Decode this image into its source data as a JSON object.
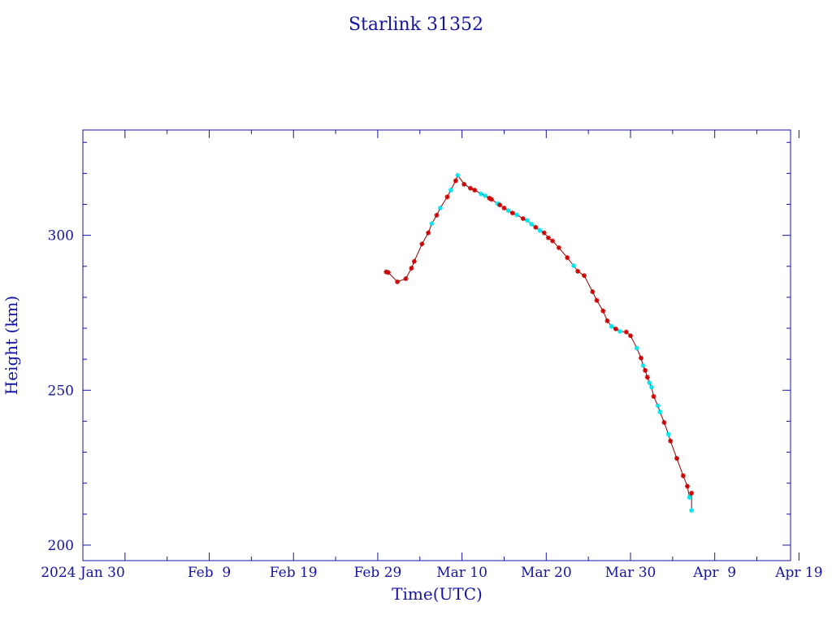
{
  "chart_data": {
    "type": "line",
    "title": "Starlink 31352",
    "xlabel": "Time(UTC)",
    "ylabel": "Height (km)",
    "x_ticks": [
      "2024 Jan 30",
      "Feb  9",
      "Feb 19",
      "Feb 29",
      "Mar 10",
      "Mar 20",
      "Mar 30",
      "Apr  9",
      "Apr 19"
    ],
    "y_ticks": [
      "200",
      "250",
      "300"
    ],
    "ylim": [
      195,
      334
    ],
    "xlim": [
      "2024-01-25",
      "2024-04-18"
    ],
    "grid": false,
    "colors": {
      "axis": "#1414a0",
      "line": "#8b0000",
      "marker_a": "#cc0000",
      "marker_b": "#00e5ee"
    },
    "series": [
      {
        "points": [
          [
            "2024-03-01T00:00",
            288.2,
            "a"
          ],
          [
            "2024-03-01T06:00",
            288.0,
            "a"
          ],
          [
            "2024-03-02T08:00",
            285.0,
            "a"
          ],
          [
            "2024-03-03T08:00",
            286.0,
            "a"
          ],
          [
            "2024-03-04T00:00",
            289.4,
            "a"
          ],
          [
            "2024-03-04T08:00",
            291.6,
            "a"
          ],
          [
            "2024-03-05T06:00",
            297.2,
            "a"
          ],
          [
            "2024-03-06T00:00",
            300.8,
            "a"
          ],
          [
            "2024-03-06T10:00",
            303.8,
            "b"
          ],
          [
            "2024-03-07T00:00",
            306.5,
            "a"
          ],
          [
            "2024-03-07T10:00",
            308.8,
            "b"
          ],
          [
            "2024-03-08T06:00",
            312.4,
            "a"
          ],
          [
            "2024-03-08T16:00",
            314.6,
            "b"
          ],
          [
            "2024-03-09T06:00",
            317.6,
            "a"
          ],
          [
            "2024-03-09T12:00",
            319.4,
            "b"
          ],
          [
            "2024-03-10T06:00",
            316.5,
            "a"
          ],
          [
            "2024-03-11T00:00",
            315.2,
            "a"
          ],
          [
            "2024-03-11T12:00",
            314.6,
            "a"
          ],
          [
            "2024-03-12T06:00",
            313.4,
            "b"
          ],
          [
            "2024-03-12T18:00",
            312.8,
            "b"
          ],
          [
            "2024-03-13T06:00",
            312.0,
            "a"
          ],
          [
            "2024-03-13T12:00",
            311.6,
            "a"
          ],
          [
            "2024-03-14T06:00",
            310.2,
            "b"
          ],
          [
            "2024-03-14T12:00",
            309.8,
            "a"
          ],
          [
            "2024-03-15T00:00",
            308.8,
            "a"
          ],
          [
            "2024-03-15T12:00",
            308.0,
            "b"
          ],
          [
            "2024-03-16T00:00",
            307.2,
            "a"
          ],
          [
            "2024-03-16T12:00",
            306.6,
            "b"
          ],
          [
            "2024-03-17T06:00",
            305.4,
            "a"
          ],
          [
            "2024-03-17T18:00",
            304.8,
            "b"
          ],
          [
            "2024-03-18T06:00",
            303.6,
            "b"
          ],
          [
            "2024-03-18T18:00",
            302.6,
            "a"
          ],
          [
            "2024-03-19T06:00",
            301.6,
            "b"
          ],
          [
            "2024-03-19T18:00",
            300.8,
            "a"
          ],
          [
            "2024-03-20T06:00",
            299.2,
            "a"
          ],
          [
            "2024-03-20T18:00",
            298.2,
            "a"
          ],
          [
            "2024-03-21T12:00",
            296.0,
            "a"
          ],
          [
            "2024-03-22T12:00",
            292.8,
            "a"
          ],
          [
            "2024-03-23T06:00",
            290.2,
            "b"
          ],
          [
            "2024-03-23T18:00",
            288.4,
            "a"
          ],
          [
            "2024-03-24T12:00",
            287.0,
            "a"
          ],
          [
            "2024-03-25T12:00",
            281.8,
            "a"
          ],
          [
            "2024-03-26T00:00",
            279.0,
            "a"
          ],
          [
            "2024-03-26T18:00",
            275.6,
            "a"
          ],
          [
            "2024-03-27T06:00",
            272.4,
            "a"
          ],
          [
            "2024-03-27T18:00",
            270.6,
            "b"
          ],
          [
            "2024-03-28T06:00",
            269.8,
            "a"
          ],
          [
            "2024-03-28T18:00",
            269.0,
            "b"
          ],
          [
            "2024-03-29T12:00",
            268.8,
            "a"
          ],
          [
            "2024-03-30T00:00",
            267.6,
            "a"
          ],
          [
            "2024-03-30T18:00",
            263.6,
            "b"
          ],
          [
            "2024-03-31T06:00",
            260.4,
            "a"
          ],
          [
            "2024-03-31T12:00",
            258.0,
            "b"
          ],
          [
            "2024-03-31T18:00",
            256.4,
            "a"
          ],
          [
            "2024-04-01T00:00",
            254.2,
            "a"
          ],
          [
            "2024-04-01T06:00",
            252.4,
            "b"
          ],
          [
            "2024-04-01T12:00",
            251.0,
            "b"
          ],
          [
            "2024-04-01T18:00",
            248.0,
            "a"
          ],
          [
            "2024-04-02T06:00",
            245.0,
            "b"
          ],
          [
            "2024-04-02T12:00",
            243.0,
            "b"
          ],
          [
            "2024-04-03T00:00",
            239.6,
            "a"
          ],
          [
            "2024-04-03T12:00",
            235.8,
            "b"
          ],
          [
            "2024-04-03T18:00",
            233.6,
            "a"
          ],
          [
            "2024-04-04T12:00",
            228.0,
            "a"
          ],
          [
            "2024-04-05T06:00",
            222.4,
            "a"
          ],
          [
            "2024-04-05T18:00",
            219.0,
            "a"
          ],
          [
            "2024-04-06T00:00",
            215.4,
            "b"
          ],
          [
            "2024-04-06T06:00",
            216.8,
            "a"
          ],
          [
            "2024-04-06T06:00",
            211.2,
            "b"
          ]
        ]
      }
    ]
  }
}
